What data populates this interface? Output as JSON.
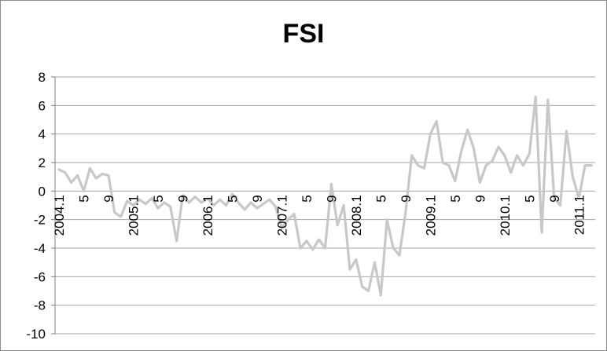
{
  "chart_data": {
    "type": "line",
    "title": "FSI",
    "xlabel": "",
    "ylabel": "",
    "ylim": [
      -10,
      8
    ],
    "yticks": [
      8,
      6,
      4,
      2,
      0,
      -2,
      -4,
      -6,
      -8,
      -10
    ],
    "grid": "horizontal",
    "legend": "none",
    "line_color": "#c8c8c8",
    "x_tick_labels": [
      {
        "index": 0,
        "label": "2004.1"
      },
      {
        "index": 4,
        "label": "5"
      },
      {
        "index": 8,
        "label": "9"
      },
      {
        "index": 12,
        "label": "2005.1"
      },
      {
        "index": 16,
        "label": "5"
      },
      {
        "index": 20,
        "label": "9"
      },
      {
        "index": 24,
        "label": "2006.1"
      },
      {
        "index": 28,
        "label": "5"
      },
      {
        "index": 32,
        "label": "9"
      },
      {
        "index": 36,
        "label": "2007.1"
      },
      {
        "index": 40,
        "label": "5"
      },
      {
        "index": 44,
        "label": "9"
      },
      {
        "index": 48,
        "label": "2008.1"
      },
      {
        "index": 52,
        "label": "5"
      },
      {
        "index": 56,
        "label": "9"
      },
      {
        "index": 60,
        "label": "2009.1"
      },
      {
        "index": 64,
        "label": "5"
      },
      {
        "index": 68,
        "label": "9"
      },
      {
        "index": 72,
        "label": "2010.1"
      },
      {
        "index": 76,
        "label": "5"
      },
      {
        "index": 80,
        "label": "9"
      },
      {
        "index": 84,
        "label": "2011.1"
      }
    ],
    "series": [
      {
        "values": [
          1.5,
          1.3,
          0.6,
          1.1,
          0.0,
          1.6,
          0.9,
          1.2,
          1.1,
          -1.5,
          -1.8,
          -0.7,
          -1.0,
          -0.6,
          -0.9,
          -0.5,
          -1.2,
          -0.8,
          -1.1,
          -3.5,
          -0.3,
          -0.8,
          -0.4,
          -0.8,
          -0.5,
          -1.0,
          -0.6,
          -1.0,
          -0.2,
          -0.8,
          -1.3,
          -0.8,
          -1.2,
          -0.9,
          -0.6,
          -1.1,
          -2.6,
          -2.0,
          -1.6,
          -4.0,
          -3.5,
          -4.1,
          -3.4,
          -4.0,
          0.5,
          -2.4,
          -1.0,
          -5.5,
          -4.8,
          -6.7,
          -7.0,
          -5.0,
          -7.3,
          -2.0,
          -4.0,
          -4.5,
          -1.5,
          2.5,
          1.8,
          1.6,
          4.0,
          4.9,
          2.0,
          1.8,
          0.7,
          2.8,
          4.3,
          3.0,
          0.6,
          1.8,
          2.1,
          3.1,
          2.5,
          1.3,
          2.5,
          1.8,
          2.6,
          6.6,
          -2.9,
          6.4,
          -0.5,
          -1.0,
          4.2,
          1.0,
          -0.5,
          1.8,
          1.8
        ]
      }
    ]
  }
}
